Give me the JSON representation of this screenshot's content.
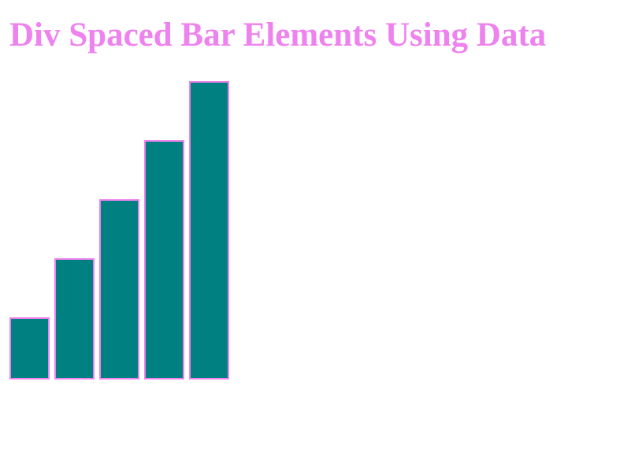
{
  "chart_data": {
    "type": "bar",
    "title": "Div Spaced Bar Elements Using Data",
    "values": [
      1,
      2,
      3,
      4,
      5
    ],
    "color": "teal",
    "edge_color": "violet"
  }
}
